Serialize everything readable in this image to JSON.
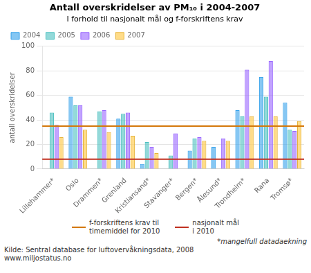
{
  "chart_data": {
    "type": "bar",
    "title": "Antall overskridelser av PM₁₀ i 2004-2007",
    "subtitle": "I forhold til nasjonalt mål og f-forskriftens krav",
    "ylabel": "antall overskridelser",
    "categories": [
      "Lillehammer*",
      "Oslo",
      "Drammen*",
      "Grenland",
      "Kristiansand*",
      "Stavanger*",
      "Bergen*",
      "Ålesund*",
      "Trondheim*",
      "Rana",
      "Tromsø*"
    ],
    "series": [
      {
        "name": "2004",
        "values": [
          null,
          59,
          null,
          41,
          4,
          null,
          15,
          18,
          48,
          75,
          54
        ]
      },
      {
        "name": "2005",
        "values": [
          46,
          52,
          47,
          45,
          22,
          11,
          25,
          null,
          43,
          59,
          32
        ]
      },
      {
        "name": "2006",
        "values": [
          36,
          52,
          48,
          46,
          18,
          29,
          26,
          25,
          81,
          88,
          31
        ]
      },
      {
        "name": "2007",
        "values": [
          26,
          32,
          30,
          27,
          13,
          null,
          23,
          23,
          43,
          43,
          39
        ]
      }
    ],
    "hlines": [
      {
        "name": "f-forskriftens krav til\ntimemiddel for 2010",
        "color": "#d4780a",
        "value": 35
      },
      {
        "name": "nasjonalt mål\ni 2010",
        "color": "#c03020",
        "value": 8
      }
    ],
    "ylim": [
      0,
      100
    ],
    "yticks": [
      0,
      20,
      40,
      60,
      80,
      100
    ],
    "grid": true,
    "legend": "upper left",
    "annotations": [
      "*mangelfull datadaekning",
      "Kilde: Sentral database for luftovervåkningsdata, 2008",
      "www.miljostatus.no"
    ]
  }
}
